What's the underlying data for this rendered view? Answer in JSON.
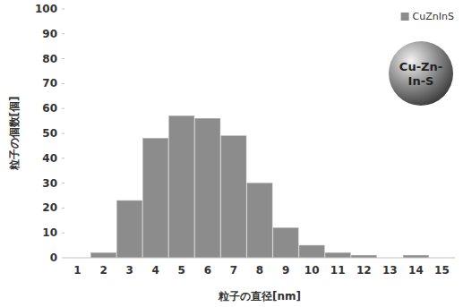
{
  "chart_data": {
    "type": "bar",
    "x_label": "粒子の直径[nm]",
    "y_label": "粒子の個数[個]",
    "annotation": "Cu-Zn-In-S",
    "categories": [
      "1",
      "2",
      "3",
      "4",
      "5",
      "6",
      "7",
      "8",
      "9",
      "10",
      "11",
      "12",
      "13",
      "14",
      "15"
    ],
    "series": [
      {
        "name": "CuZnInS",
        "color": "#8c8c8c",
        "values": [
          0,
          2,
          23,
          48,
          57,
          56,
          49,
          30,
          12,
          5,
          2,
          1,
          0,
          1,
          0
        ]
      }
    ],
    "ylim": [
      0,
      100
    ],
    "yticks": [
      0,
      10,
      20,
      30,
      40,
      50,
      60,
      70,
      80,
      90,
      100
    ],
    "grid": false,
    "legend": "top-right"
  }
}
